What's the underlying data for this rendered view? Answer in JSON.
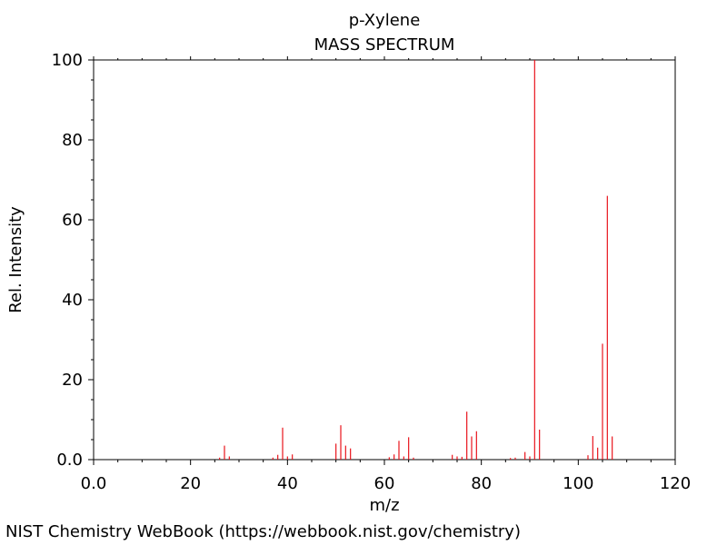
{
  "chart_data": {
    "type": "bar",
    "title": "p-Xylene",
    "subtitle": "MASS SPECTRUM",
    "xlabel": "m/z",
    "ylabel": "Rel. Intensity",
    "xlim": [
      0,
      120
    ],
    "ylim": [
      0,
      100
    ],
    "xticks": [
      "0.0",
      "20",
      "40",
      "60",
      "80",
      "100",
      "120"
    ],
    "yticks": [
      "0.0",
      "20",
      "40",
      "60",
      "80",
      "100"
    ],
    "grid": false,
    "series_color": "#e8141c",
    "peaks": [
      {
        "mz": 26,
        "intensity": 0.5
      },
      {
        "mz": 27,
        "intensity": 3.5
      },
      {
        "mz": 28,
        "intensity": 0.8
      },
      {
        "mz": 37,
        "intensity": 0.5
      },
      {
        "mz": 38,
        "intensity": 1.2
      },
      {
        "mz": 39,
        "intensity": 8.0
      },
      {
        "mz": 40,
        "intensity": 0.8
      },
      {
        "mz": 41,
        "intensity": 1.3
      },
      {
        "mz": 50,
        "intensity": 4.0
      },
      {
        "mz": 51,
        "intensity": 8.6
      },
      {
        "mz": 52,
        "intensity": 3.5
      },
      {
        "mz": 53,
        "intensity": 2.8
      },
      {
        "mz": 61,
        "intensity": 0.6
      },
      {
        "mz": 62,
        "intensity": 1.3
      },
      {
        "mz": 63,
        "intensity": 4.7
      },
      {
        "mz": 64,
        "intensity": 0.8
      },
      {
        "mz": 65,
        "intensity": 5.6
      },
      {
        "mz": 66,
        "intensity": 0.5
      },
      {
        "mz": 74,
        "intensity": 1.2
      },
      {
        "mz": 75,
        "intensity": 0.8
      },
      {
        "mz": 76,
        "intensity": 0.7
      },
      {
        "mz": 77,
        "intensity": 12.0
      },
      {
        "mz": 78,
        "intensity": 5.8
      },
      {
        "mz": 79,
        "intensity": 7.1
      },
      {
        "mz": 86,
        "intensity": 0.4
      },
      {
        "mz": 87,
        "intensity": 0.5
      },
      {
        "mz": 89,
        "intensity": 1.9
      },
      {
        "mz": 90,
        "intensity": 0.8
      },
      {
        "mz": 91,
        "intensity": 100
      },
      {
        "mz": 92,
        "intensity": 7.5
      },
      {
        "mz": 102,
        "intensity": 1.1
      },
      {
        "mz": 103,
        "intensity": 5.9
      },
      {
        "mz": 104,
        "intensity": 3.0
      },
      {
        "mz": 105,
        "intensity": 29.0
      },
      {
        "mz": 106,
        "intensity": 66.0
      },
      {
        "mz": 107,
        "intensity": 5.8
      }
    ]
  },
  "footer": {
    "text": "NIST Chemistry WebBook (https://webbook.nist.gov/chemistry)"
  }
}
